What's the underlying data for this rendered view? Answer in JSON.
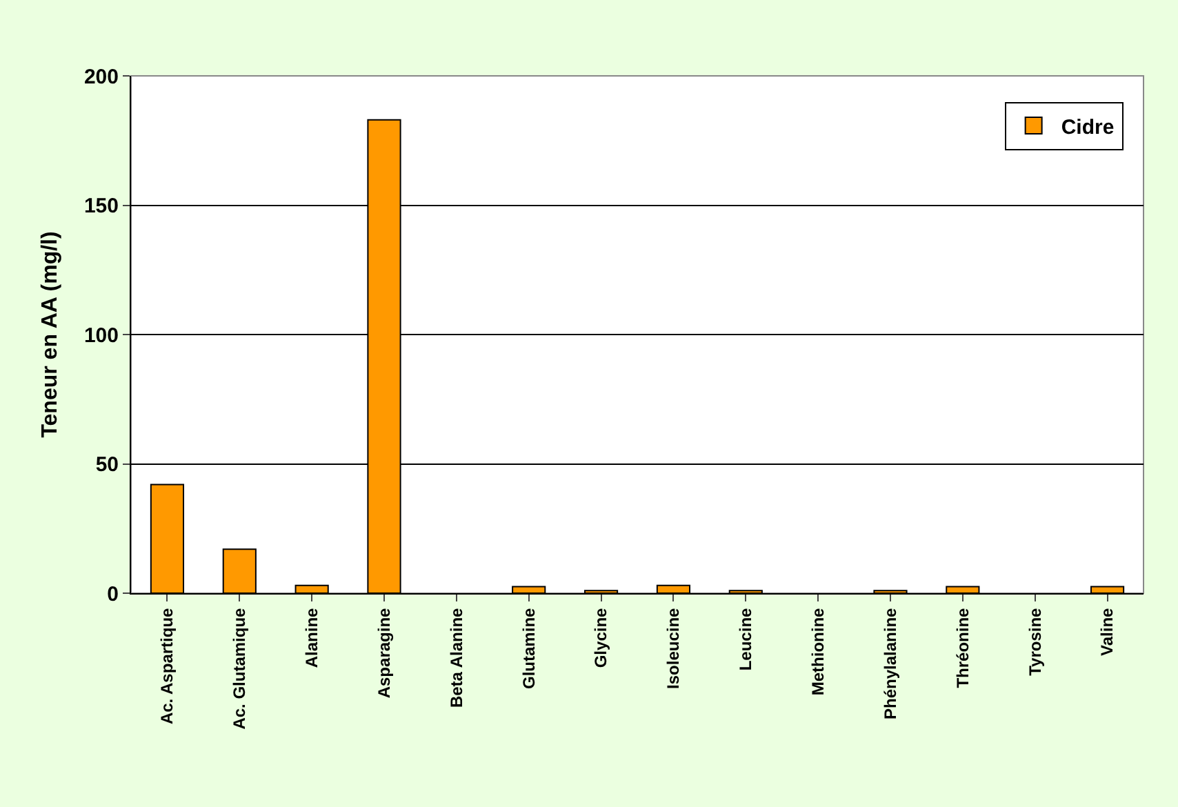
{
  "chart_data": {
    "type": "bar",
    "ylabel": "Teneur en AA (mg/l)",
    "categories": [
      "Ac. Aspartique",
      "Ac. Glutamique",
      "Alanine",
      "Asparagine",
      "Beta Alanine",
      "Glutamine",
      "Glycine",
      "Isoleucine",
      "Leucine",
      "Methionine",
      "Phénylalanine",
      "Thréonine",
      "Tyrosine",
      "Valine"
    ],
    "series": [
      {
        "name": "Cidre",
        "color": "#ff9900",
        "values": [
          42,
          17,
          3,
          183,
          0,
          2.5,
          1,
          3,
          1,
          0,
          1,
          2.5,
          0,
          2.5
        ]
      }
    ],
    "ylim": [
      0,
      200
    ],
    "yticks": [
      0,
      50,
      100,
      150,
      200
    ],
    "grid": "y",
    "legend": "top right"
  }
}
